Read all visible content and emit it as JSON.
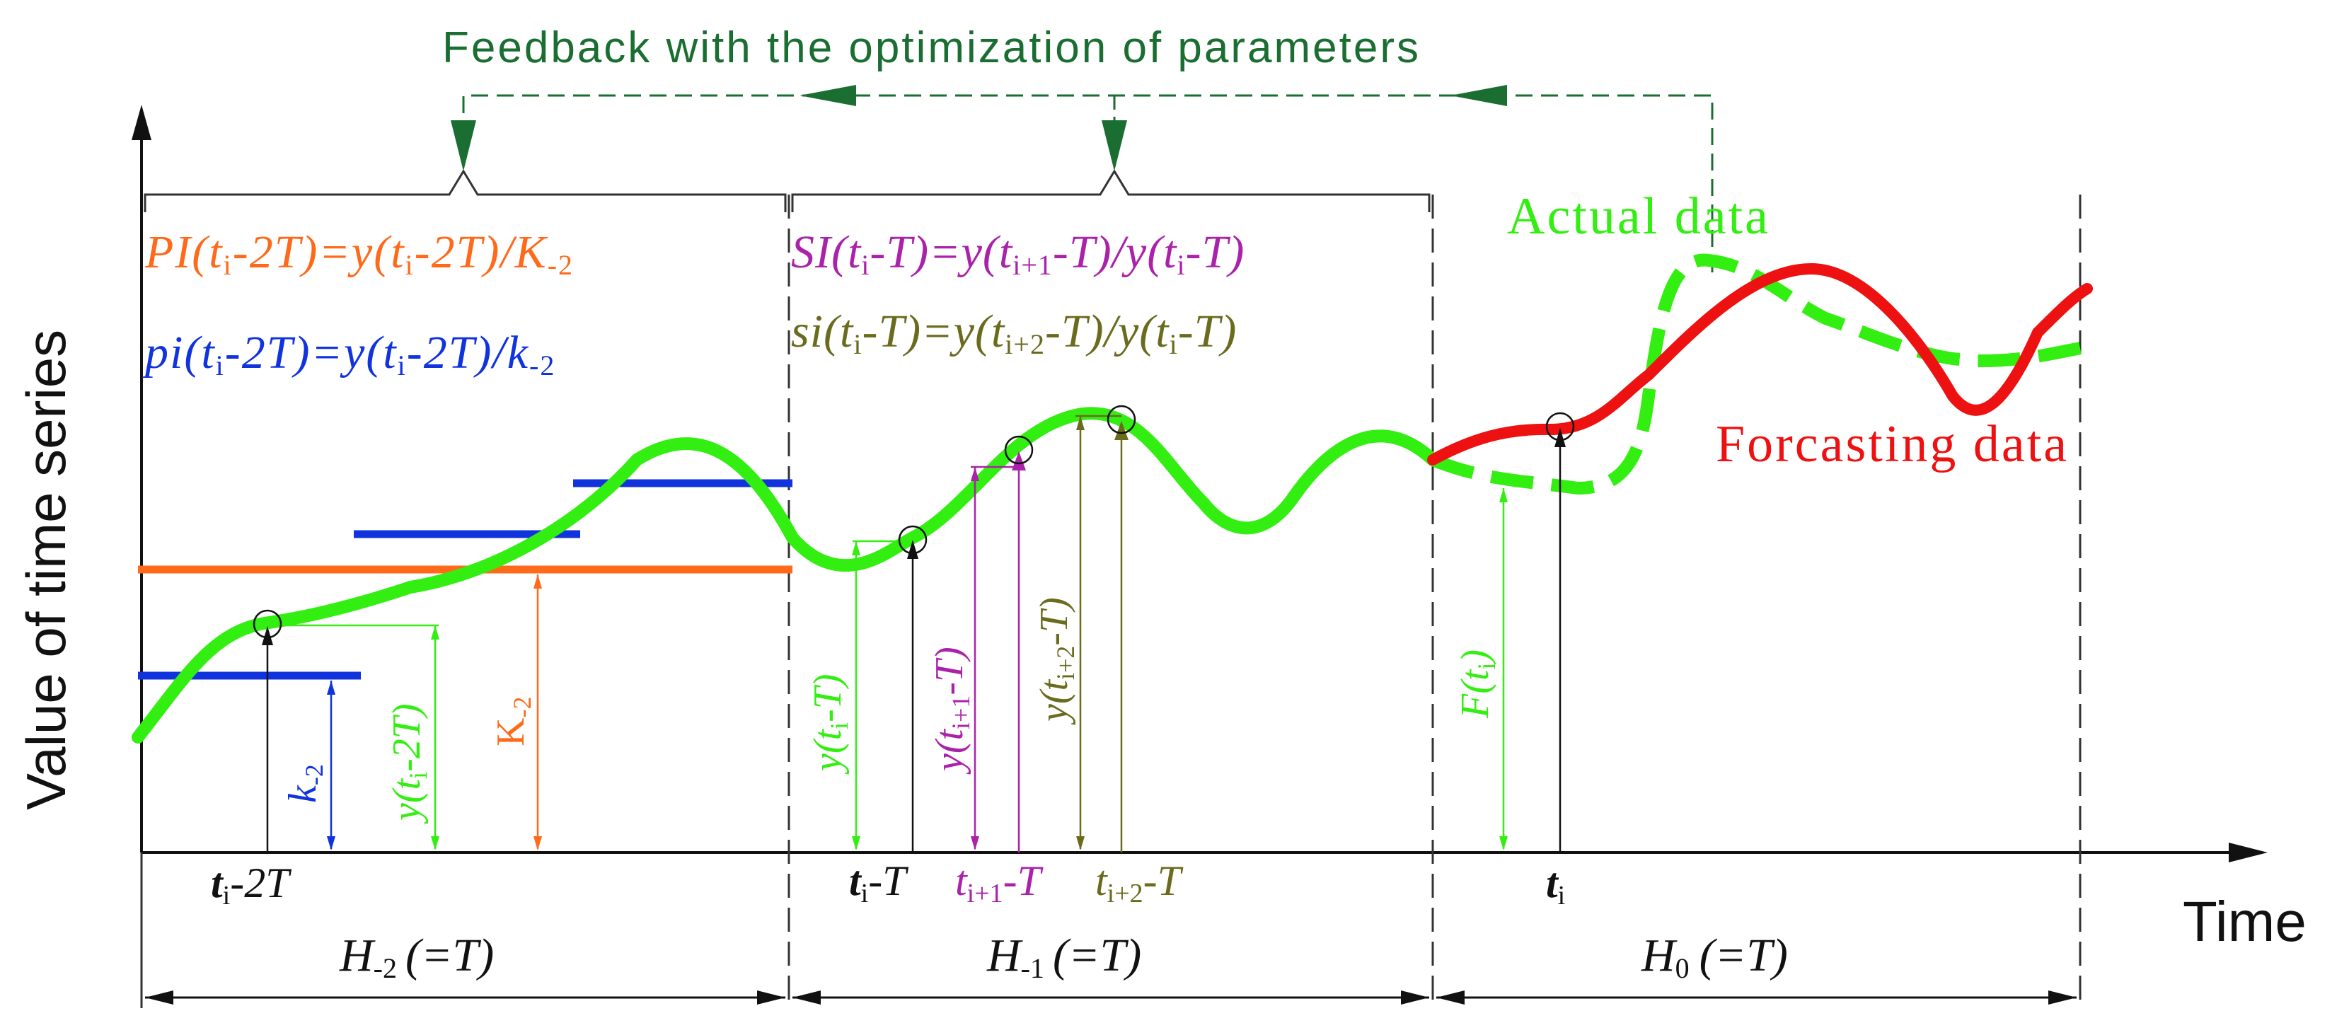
{
  "title": "Feedback with the optimization of parameters",
  "axes": {
    "y_label": "Value of time series",
    "x_label": "Time"
  },
  "legend": {
    "actual": "Actual data",
    "forecast": "Forcasting data"
  },
  "formulas": {
    "PI": {
      "pre": "PI(t",
      "i": "i",
      "mid": "-2T)=y(t",
      "i2": "i",
      "post": "-2T)/K",
      "sub": "-2"
    },
    "pi": {
      "pre": "pi(t",
      "i": "i",
      "mid": "-2T)=y(t",
      "i2": "i",
      "post": "-2T)/k",
      "sub": "-2"
    },
    "SI": {
      "pre": "SI(t",
      "i": "i",
      "mid": "-T)=y(t",
      "i2": "i+1",
      "post": "-T)/y(t",
      "i3": "i",
      "end": "-T)"
    },
    "si": {
      "pre": "si(t",
      "i": "i",
      "mid": "-T)=y(t",
      "i2": "i+2",
      "post": "-T)/y(t",
      "i3": "i",
      "end": "-T)"
    }
  },
  "vertical_labels": {
    "k": {
      "main": "k",
      "sub": "-2"
    },
    "y_2T": {
      "pre": "y(t",
      "i": "i",
      "post": "-2T)"
    },
    "K": {
      "main": "K",
      "sub": "-2"
    },
    "y_T": {
      "pre": "y(t",
      "i": "i",
      "post": "-T)"
    },
    "y_i1": {
      "pre": "y(t",
      "i": "i+1",
      "post": "-T)"
    },
    "y_i2": {
      "pre": "y(t",
      "i": "i+2",
      "post": "-T)"
    },
    "F": {
      "pre": "F(t",
      "i": "i",
      "post": ")"
    }
  },
  "time_labels": {
    "ti2T": {
      "t": "t",
      "i": "i",
      "rest": "-2T"
    },
    "tiT": {
      "t": "t",
      "i": "i",
      "rest": "-T"
    },
    "ti1T": {
      "t": "t",
      "i": "i+1",
      "rest": "-T"
    },
    "ti2Tb": {
      "t": "t",
      "i": "i+2",
      "rest": "-T"
    },
    "ti": {
      "t": "t",
      "i": "i"
    }
  },
  "horizons": {
    "h2": {
      "H": "H",
      "sub": "-2",
      "rest": "(=T)"
    },
    "h1": {
      "H": "H",
      "sub": "-1",
      "rest": "(=T)"
    },
    "h0": {
      "H": "H",
      "sub": "0",
      "rest": "(=T)"
    }
  },
  "colors": {
    "green": "#33ee11",
    "red": "#ee1111",
    "orange": "#ff6a1a",
    "blue": "#1133dd",
    "purple": "#aa22aa",
    "olive": "#6b6b1e",
    "dark_green": "#1a6e32",
    "black": "#111111"
  }
}
